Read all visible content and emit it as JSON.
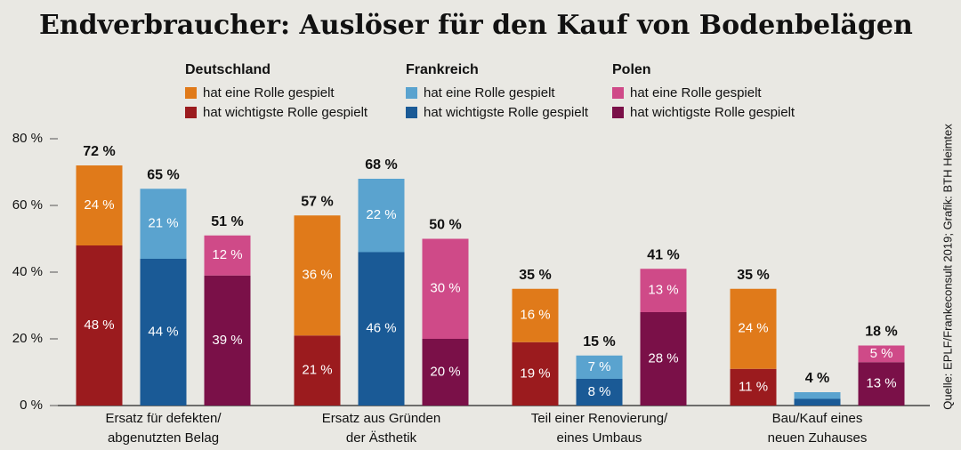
{
  "chart_data": {
    "type": "grouped_stacked_bar",
    "title": "Endverbraucher: Auslöser für den Kauf von Bodenbelägen",
    "source": "Quelle: EPLF/Frankeconsult 2019; Grafik: BTH Heimtex",
    "categories": [
      [
        "Ersatz für defekten/",
        "abgenutzten Belag"
      ],
      [
        "Ersatz aus Gründen",
        "der Ästhetik"
      ],
      [
        "Teil einer Renovierung/",
        "eines Umbaus"
      ],
      [
        "Bau/Kauf eines",
        "neuen Zuhauses"
      ]
    ],
    "ylim": [
      0,
      80
    ],
    "yticks": [
      {
        "value": 0,
        "label": "0 %"
      },
      {
        "value": 20,
        "label": "20 %"
      },
      {
        "value": 40,
        "label": "40 %"
      },
      {
        "value": 60,
        "label": "60 %"
      },
      {
        "value": 80,
        "label": "80 %"
      }
    ],
    "grid": false,
    "groups": [
      {
        "name": "Deutschland",
        "series": [
          {
            "name": "hat eine Rolle gespielt",
            "color": "#e07a1a",
            "values": [
              24,
              36,
              16,
              24
            ],
            "value_labels": [
              "24 %",
              "36 %",
              "16 %",
              "24 %"
            ]
          },
          {
            "name": "hat wichtigste Rolle gespielt",
            "color": "#9b1b1e",
            "values": [
              48,
              21,
              19,
              11
            ],
            "value_labels": [
              "48 %",
              "21 %",
              "19 %",
              "11 %"
            ]
          }
        ],
        "totals": [
          72,
          57,
          35,
          35
        ],
        "total_labels": [
          "72 %",
          "57 %",
          "35 %",
          "35 %"
        ]
      },
      {
        "name": "Frankreich",
        "series": [
          {
            "name": "hat eine Rolle gespielt",
            "color": "#5aa3cf",
            "values": [
              21,
              22,
              7,
              2
            ],
            "value_labels": [
              "21 %",
              "22 %",
              "7 %",
              null
            ]
          },
          {
            "name": "hat wichtigste Rolle gespielt",
            "color": "#1a5a96",
            "values": [
              44,
              46,
              8,
              2
            ],
            "value_labels": [
              "44 %",
              "46 %",
              "8 %",
              null
            ]
          }
        ],
        "totals": [
          65,
          68,
          15,
          4
        ],
        "total_labels": [
          "65 %",
          "68 %",
          "15 %",
          "4 %"
        ]
      },
      {
        "name": "Polen",
        "series": [
          {
            "name": "hat eine Rolle gespielt",
            "color": "#cf4a88",
            "values": [
              12,
              30,
              13,
              5
            ],
            "value_labels": [
              "12 %",
              "30 %",
              "13 %",
              "5 %"
            ]
          },
          {
            "name": "hat wichtigste Rolle gespielt",
            "color": "#7a1048",
            "values": [
              39,
              20,
              28,
              13
            ],
            "value_labels": [
              "39 %",
              "20 %",
              "28 %",
              "13 %"
            ]
          }
        ],
        "totals": [
          51,
          50,
          41,
          18
        ],
        "total_labels": [
          "51 %",
          "50 %",
          "41 %",
          "18 %"
        ]
      }
    ]
  }
}
